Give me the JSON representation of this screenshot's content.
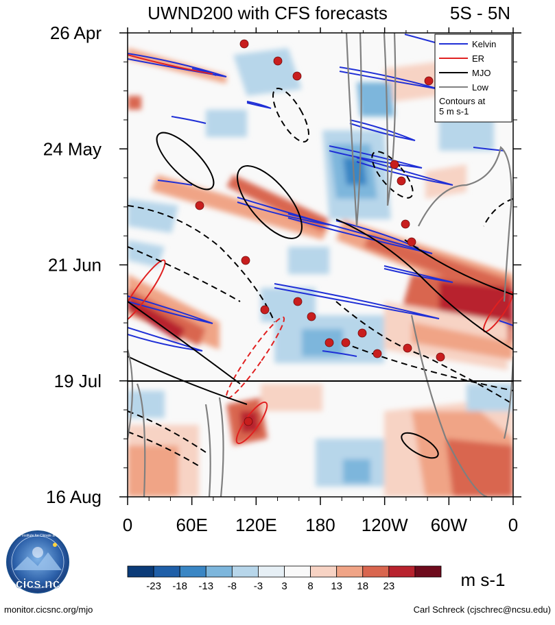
{
  "chart_data": {
    "type": "heatmap",
    "title": "UWND200 with CFS forecasts",
    "subtitle": "5S - 5N",
    "x_ticks": [
      "0",
      "60E",
      "120E",
      "180",
      "120W",
      "60W",
      "0"
    ],
    "y_ticks": [
      "26 Apr",
      "24 May",
      "21 Jun",
      "19 Jul",
      "16 Aug"
    ],
    "forecast_start": "19 Jul",
    "colorbar": {
      "levels": [
        -23,
        -18,
        -13,
        -8,
        -3,
        3,
        8,
        13,
        18,
        23
      ],
      "level_labels": [
        "-23",
        "-18",
        "-13",
        "-8",
        "-3",
        "3",
        "8",
        "13",
        "18",
        "23"
      ],
      "colors": [
        "#0b3b78",
        "#1f5fa8",
        "#3a86c4",
        "#7db6dc",
        "#b7d6ea",
        "#e6eff5",
        "#f9f9f9",
        "#f7d3c4",
        "#f0a486",
        "#d9664f",
        "#b8232e",
        "#6e0b1d"
      ],
      "units": "m s-1"
    },
    "legend": {
      "entries": [
        {
          "label": "Kelvin",
          "color": "#1f2fd6"
        },
        {
          "label": "ER",
          "color": "#e02020"
        },
        {
          "label": "MJO",
          "color": "#000000"
        },
        {
          "label": "Low",
          "color": "#808080"
        }
      ],
      "note": [
        "Contours at",
        "5 m s-1"
      ],
      "position": "top-right"
    }
  },
  "footer": {
    "left": "monitor.cicsnc.org/mjo",
    "right": "Carl Schreck (cjschrec@ncsu.edu)",
    "logo_text": "cics.nc",
    "logo_ring": "Cooperative Institute for Climate and Satellites"
  }
}
